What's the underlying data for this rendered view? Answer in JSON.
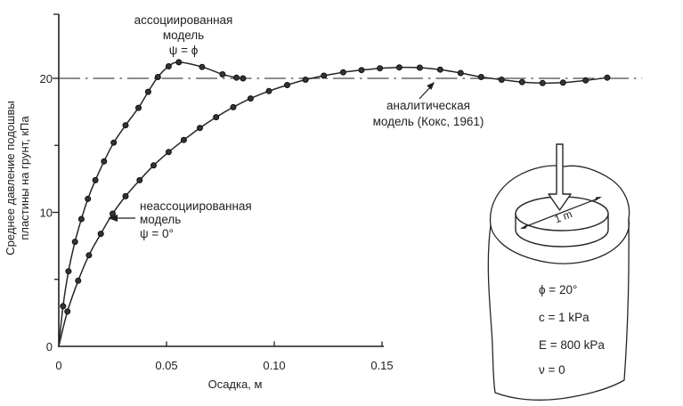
{
  "figure": {
    "background": "#ffffff",
    "ink": "#1f1f1f",
    "dash_line_color": "#4a4a4a"
  },
  "chart_data": {
    "type": "line",
    "title": "",
    "xlabel": "Осадка, м",
    "ylabel": "Среднее давление подошвы пластины на грунт, кПа",
    "ylabel_lines": [
      "Среднее давление подошвы",
      "пластины на грунт, кПа"
    ],
    "xlim": [
      0,
      0.15
    ],
    "ylim": [
      0,
      24.8
    ],
    "grid": false,
    "legend_position": "annotations-on-plot",
    "x_ticks": {
      "values": [
        0,
        0.05,
        0.1,
        0.15
      ],
      "labels": [
        "0",
        "0.05",
        "0.10",
        "0.15"
      ]
    },
    "y_ticks": {
      "values": [
        0,
        10,
        20
      ],
      "labels": [
        "0",
        "10",
        "20"
      ],
      "minor": [
        5,
        15
      ]
    },
    "series": [
      {
        "id": "associated-curve",
        "name": "ассоциированная модель (ψ = ϕ)",
        "type": "curve",
        "marker": "dot",
        "marker_from": 1,
        "x": [
          0,
          0.002,
          0.0045,
          0.0075,
          0.0105,
          0.0135,
          0.017,
          0.021,
          0.0255,
          0.031,
          0.037,
          0.0415,
          0.046,
          0.051,
          0.0557,
          0.0665,
          0.076,
          0.0825,
          0.0855
        ],
        "y": [
          0,
          3.0,
          5.6,
          7.8,
          9.5,
          11.0,
          12.4,
          13.8,
          15.2,
          16.5,
          17.8,
          19.0,
          20.1,
          20.9,
          21.2,
          20.85,
          20.3,
          20.05,
          20.0
        ]
      },
      {
        "id": "nonassociated-curve",
        "name": "неассоциированная модель (ψ = 0°)",
        "type": "curve",
        "marker": "dot",
        "marker_from": 1,
        "x": [
          0,
          0.004,
          0.009,
          0.014,
          0.0195,
          0.025,
          0.031,
          0.0375,
          0.044,
          0.051,
          0.058,
          0.0655,
          0.073,
          0.081,
          0.089,
          0.0975,
          0.106,
          0.1145,
          0.123,
          0.132,
          0.1405,
          0.149,
          0.158,
          0.1675,
          0.177,
          0.1865,
          0.196,
          0.2055,
          0.215,
          0.2245,
          0.234,
          0.2445,
          0.2545
        ],
        "y": [
          0,
          2.6,
          4.9,
          6.8,
          8.4,
          9.9,
          11.2,
          12.4,
          13.5,
          14.5,
          15.4,
          16.3,
          17.1,
          17.85,
          18.5,
          19.05,
          19.5,
          19.9,
          20.2,
          20.45,
          20.62,
          20.75,
          20.82,
          20.8,
          20.65,
          20.4,
          20.1,
          19.9,
          19.72,
          19.65,
          19.68,
          19.85,
          20.05
        ]
      },
      {
        "id": "analytical-line",
        "name": "аналитическая модель (Кокс, 1961)",
        "type": "hline",
        "style": "dash-dot",
        "y": 20,
        "x_range": [
          0,
          0.2707
        ]
      }
    ]
  },
  "annotations": {
    "associated": {
      "lines": [
        "ассоциированная",
        "модель",
        "ψ = ϕ"
      ]
    },
    "nonassociated": {
      "lines": [
        "неассоциированная",
        "модель",
        "ψ = 0°"
      ]
    },
    "analytical": {
      "lines": [
        "аналитическая",
        "модель (Кокс, 1961)"
      ]
    }
  },
  "inset": {
    "plate_diameter_label": "1 m",
    "parameters": [
      "ϕ = 20°",
      "c = 1 kPa",
      "E = 800 kPa",
      "ν = 0"
    ]
  }
}
